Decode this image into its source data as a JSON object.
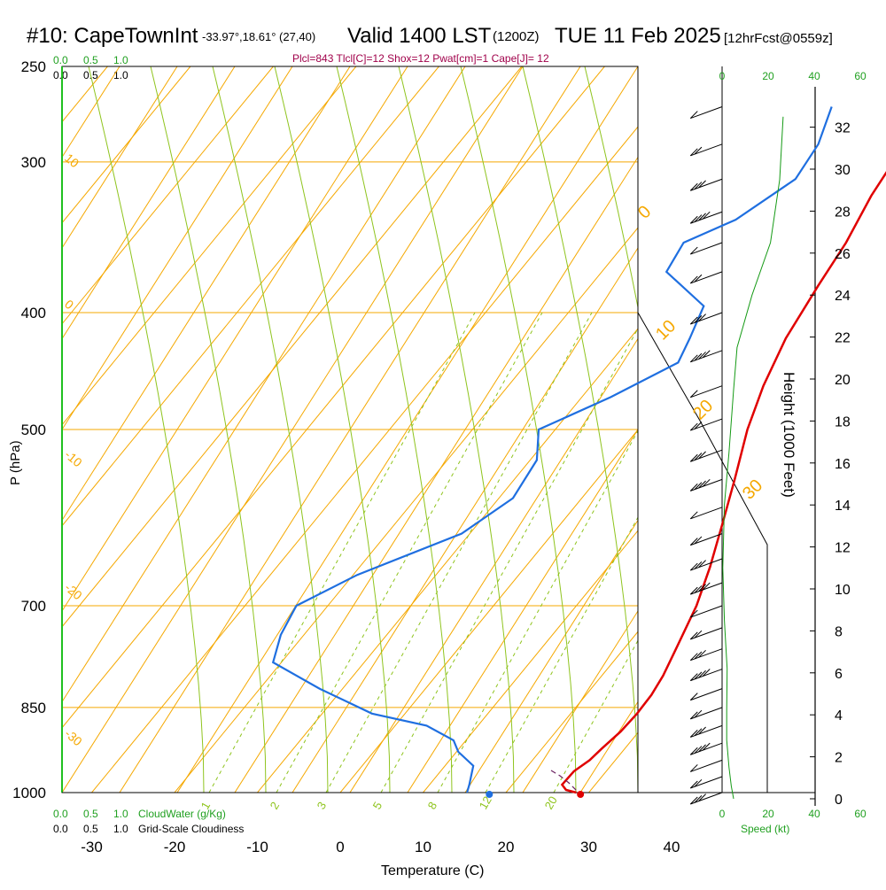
{
  "header": {
    "station": "#10: CapeTownInt",
    "coords": "-33.97°,18.61° (27,40)",
    "valid": "Valid 1400 LST",
    "utc": "(1200Z)",
    "date": "TUE 11 Feb 2025",
    "forecast": "[12hrFcst@0559z]",
    "indices": "Plcl=843 Tlcl[C]=12 Shox=12 Pwat[cm]=1 Cape[J]= 12"
  },
  "labels": {
    "pressure_axis": "P (hPa)",
    "temperature_axis": "Temperature (C)",
    "height_axis": "Height (1000 Feet)",
    "cloud_water": "CloudWater (g/Kg)",
    "grid_cloudiness": "Grid-Scale Cloudiness",
    "speed": "Speed (kt)",
    "cloud_ticks": [
      "0.0",
      "0.5",
      "1.0"
    ]
  },
  "colors": {
    "isotherm": "#f5a800",
    "dry_adiabat": "#8fc41e",
    "moist_adiabat": "#8fc41e",
    "mixing_ratio": "#8fc41e",
    "temperature": "#e00000",
    "dewpoint": "#1f6fe0",
    "height": "#159a15",
    "header_indices": "#a0004a"
  },
  "chart_data": {
    "type": "line",
    "plot": "skew-T log-P sounding",
    "pressure_ticks": [
      250,
      300,
      400,
      500,
      700,
      850,
      1000
    ],
    "temperature_ticks": [
      -30,
      -20,
      -10,
      0,
      10,
      20,
      30,
      40
    ],
    "height_ticks": [
      0,
      2,
      4,
      6,
      8,
      10,
      12,
      14,
      16,
      18,
      20,
      22,
      24,
      26,
      28,
      30,
      32
    ],
    "speed_ticks": [
      0,
      20,
      40,
      60
    ],
    "isotherm_labels": [
      "10",
      "0",
      "-10",
      "-20",
      "-30"
    ],
    "right_isotherm_labels": [
      "0",
      "10",
      "20",
      "30"
    ],
    "mixing_ratio_labels": [
      "1",
      "2",
      "3",
      "5",
      "8",
      "12",
      "20"
    ],
    "series": [
      {
        "name": "Temperature",
        "points": [
          [
            1000,
            28.5
          ],
          [
            995,
            27.0
          ],
          [
            985,
            26.0
          ],
          [
            960,
            26.1
          ],
          [
            940,
            26.9
          ],
          [
            920,
            27.2
          ],
          [
            890,
            27.8
          ],
          [
            860,
            28.0
          ],
          [
            830,
            27.9
          ],
          [
            800,
            27.4
          ],
          [
            760,
            26.3
          ],
          [
            700,
            24.5
          ],
          [
            650,
            22.3
          ],
          [
            600,
            19.6
          ],
          [
            550,
            16.6
          ],
          [
            500,
            13.2
          ],
          [
            460,
            10.8
          ],
          [
            420,
            8.8
          ],
          [
            380,
            7.5
          ],
          [
            350,
            6.6
          ],
          [
            320,
            5.0
          ],
          [
            300,
            4.3
          ],
          [
            280,
            3.8
          ],
          [
            265,
            3.6
          ]
        ]
      },
      {
        "name": "Dewpoint",
        "points": [
          [
            1000,
            15.3
          ],
          [
            985,
            14.8
          ],
          [
            950,
            13.4
          ],
          [
            925,
            10.2
          ],
          [
            905,
            8.5
          ],
          [
            880,
            3.8
          ],
          [
            860,
            -4.0
          ],
          [
            820,
            -12.8
          ],
          [
            780,
            -21.0
          ],
          [
            740,
            -22.8
          ],
          [
            700,
            -23.8
          ],
          [
            660,
            -19.5
          ],
          [
            610,
            -11.0
          ],
          [
            570,
            -8.3
          ],
          [
            530,
            -9.2
          ],
          [
            500,
            -12.0
          ],
          [
            470,
            -6.5
          ],
          [
            440,
            -1.8
          ],
          [
            420,
            -2.8
          ],
          [
            395,
            -4.3
          ],
          [
            370,
            -12.2
          ],
          [
            350,
            -13.0
          ],
          [
            335,
            -9.0
          ],
          [
            310,
            -5.8
          ],
          [
            290,
            -6.5
          ],
          [
            270,
            -8.6
          ]
        ]
      },
      {
        "name": "Height",
        "points": [
          [
            0,
            5
          ],
          [
            0.6,
            4
          ],
          [
            1.5,
            3
          ],
          [
            2.8,
            2
          ],
          [
            4.2,
            2
          ],
          [
            6.2,
            2.2
          ],
          [
            8.5,
            1.0
          ],
          [
            11.0,
            0.3
          ],
          [
            14.0,
            1.0
          ],
          [
            16.5,
            3.0
          ],
          [
            19.5,
            5.0
          ],
          [
            21.5,
            6.5
          ],
          [
            24.0,
            13.0
          ],
          [
            26.5,
            21.0
          ],
          [
            29.5,
            25.0
          ],
          [
            32.5,
            26.5
          ]
        ]
      }
    ],
    "surface_temperature_marker": 29,
    "surface_dewpoint_marker": 18,
    "wind_barbs_pressure_hpa": [
      270,
      290,
      310,
      330,
      350,
      370,
      400,
      430,
      460,
      490,
      520,
      550,
      580,
      610,
      640,
      670,
      700,
      730,
      760,
      790,
      820,
      850,
      880,
      910,
      940,
      970,
      1000
    ]
  }
}
